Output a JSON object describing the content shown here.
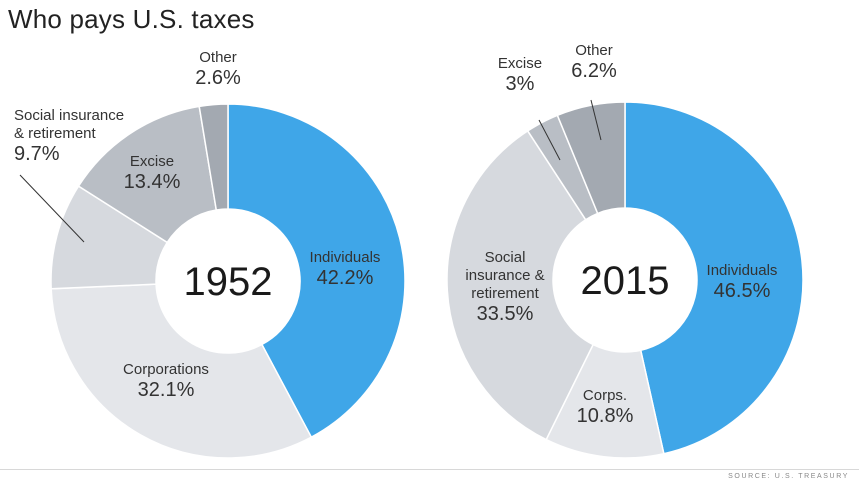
{
  "title": "Who pays U.S. taxes",
  "source": "SOURCE: U.S. TREASURY",
  "chart_data": [
    {
      "type": "donut",
      "center_label": "1952",
      "slices": [
        {
          "name": "Individuals",
          "value": 42.2,
          "value_label": "42.2%",
          "color": "#3fa6e8"
        },
        {
          "name": "Corporations",
          "value": 32.1,
          "value_label": "32.1%",
          "color": "#e4e6ea"
        },
        {
          "name": "Social insurance & retirement",
          "name_lines": [
            "Social insurance",
            "& retirement"
          ],
          "value": 9.7,
          "value_label": "9.7%",
          "color": "#d6d9de"
        },
        {
          "name": "Excise",
          "value": 13.4,
          "value_label": "13.4%",
          "color": "#b9bec5"
        },
        {
          "name": "Other",
          "value": 2.6,
          "value_label": "2.6%",
          "color": "#a3a9b1"
        }
      ]
    },
    {
      "type": "donut",
      "center_label": "2015",
      "slices": [
        {
          "name": "Individuals",
          "value": 46.5,
          "value_label": "46.5%",
          "color": "#3fa6e8"
        },
        {
          "name": "Corps.",
          "value": 10.8,
          "value_label": "10.8%",
          "color": "#e4e6ea"
        },
        {
          "name": "Social insurance & retirement",
          "name_lines": [
            "Social",
            "insurance &",
            "retirement"
          ],
          "value": 33.5,
          "value_label": "33.5%",
          "color": "#d6d9de"
        },
        {
          "name": "Excise",
          "value": 3,
          "value_label": "3%",
          "color": "#b9bec5"
        },
        {
          "name": "Other",
          "value": 6.2,
          "value_label": "6.2%",
          "color": "#a3a9b1"
        }
      ]
    }
  ]
}
